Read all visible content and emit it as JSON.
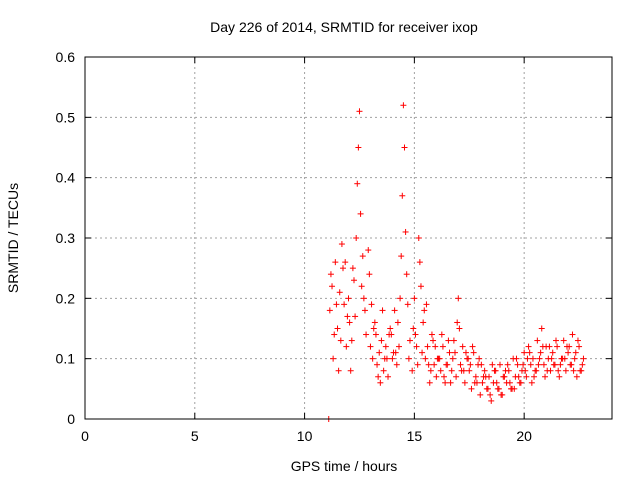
{
  "chart_data": {
    "type": "scatter",
    "title": "Day 226 of 2014, SRMTID for receiver ixop",
    "xlabel": "GPS time / hours",
    "ylabel": "SRMTID / TECUs",
    "xlim": [
      0,
      24
    ],
    "ylim": [
      0,
      0.6
    ],
    "xticks": [
      0,
      5,
      10,
      15,
      20
    ],
    "xtick_labels": [
      "0",
      "5",
      "10",
      "15",
      "20"
    ],
    "yticks": [
      0,
      0.1,
      0.2,
      0.3,
      0.4,
      0.5,
      0.6
    ],
    "ytick_labels": [
      "0",
      "0.1",
      "0.2",
      "0.3",
      "0.4",
      "0.5",
      "0.6"
    ],
    "grid": true,
    "marker": "+",
    "color": "#ff0000",
    "series": [
      {
        "name": "SRMTID",
        "x": [
          11.1,
          11.15,
          11.2,
          11.3,
          11.4,
          11.5,
          11.6,
          11.7,
          11.8,
          11.9,
          12.0,
          12.1,
          12.2,
          12.3,
          12.35,
          12.4,
          12.45,
          12.5,
          12.55,
          12.6,
          12.65,
          12.7,
          12.8,
          12.9,
          13.0,
          13.1,
          13.2,
          13.3,
          13.4,
          13.5,
          13.6,
          13.7,
          13.8,
          13.9,
          14.0,
          14.1,
          14.2,
          14.3,
          14.4,
          14.45,
          14.5,
          14.55,
          14.6,
          14.65,
          14.7,
          14.8,
          14.9,
          15.0,
          15.1,
          15.2,
          15.3,
          15.4,
          15.5,
          15.6,
          15.7,
          15.8,
          15.9,
          16.0,
          16.1,
          16.2,
          16.3,
          16.4,
          16.5,
          16.6,
          16.7,
          16.8,
          16.9,
          17.0,
          17.1,
          17.2,
          17.3,
          17.4,
          17.5,
          17.6,
          17.7,
          17.8,
          17.9,
          18.0,
          18.1,
          18.2,
          18.3,
          18.4,
          18.5,
          18.6,
          18.7,
          18.8,
          18.9,
          19.0,
          19.1,
          19.2,
          19.3,
          19.4,
          19.5,
          19.6,
          19.7,
          19.8,
          19.9,
          20.0,
          20.1,
          20.2,
          20.3,
          20.4,
          20.5,
          20.6,
          20.7,
          20.8,
          20.9,
          21.0,
          21.1,
          21.2,
          21.3,
          21.4,
          21.5,
          21.6,
          21.7,
          21.8,
          21.9,
          22.0,
          22.1,
          22.2,
          22.3,
          22.4,
          22.5,
          22.6,
          22.7,
          11.25,
          11.45,
          11.65,
          11.85,
          12.05,
          12.25,
          12.75,
          12.95,
          13.15,
          13.35,
          13.55,
          13.75,
          13.95,
          14.15,
          14.35,
          14.75,
          14.95,
          15.15,
          15.35,
          15.55,
          15.75,
          15.95,
          16.15,
          16.35,
          16.55,
          16.75,
          16.95,
          17.15,
          17.35,
          17.55,
          17.75,
          17.95,
          18.15,
          18.35,
          18.55,
          18.75,
          18.95,
          19.15,
          19.35,
          19.55,
          19.75,
          19.95,
          20.15,
          20.35,
          20.55,
          20.75,
          20.95,
          21.15,
          21.35,
          21.55,
          21.75,
          21.95,
          22.15,
          22.35,
          22.55,
          11.35,
          11.55,
          11.75,
          11.95,
          12.15,
          13.05,
          13.25,
          13.45,
          13.65,
          13.85,
          14.05,
          14.25,
          15.05,
          15.25,
          15.45,
          15.65,
          15.85,
          16.05,
          16.25,
          16.45,
          16.65,
          16.85,
          17.05,
          17.25,
          17.45,
          17.65,
          17.85,
          18.05,
          18.25,
          18.45,
          18.65,
          18.85,
          19.05,
          19.25,
          19.45,
          19.65,
          19.85,
          20.05,
          20.25,
          20.45,
          20.65,
          20.85,
          21.05,
          21.25,
          21.45,
          21.65,
          21.85,
          22.05,
          22.25,
          22.45,
          22.65
        ],
        "y": [
          0.0,
          0.18,
          0.24,
          0.1,
          0.26,
          0.15,
          0.21,
          0.29,
          0.19,
          0.12,
          0.2,
          0.08,
          0.25,
          0.17,
          0.3,
          0.39,
          0.45,
          0.51,
          0.34,
          0.22,
          0.27,
          0.2,
          0.14,
          0.28,
          0.12,
          0.1,
          0.16,
          0.09,
          0.11,
          0.13,
          0.08,
          0.12,
          0.07,
          0.15,
          0.1,
          0.18,
          0.09,
          0.12,
          0.27,
          0.37,
          0.52,
          0.45,
          0.31,
          0.24,
          0.19,
          0.13,
          0.08,
          0.2,
          0.12,
          0.3,
          0.22,
          0.16,
          0.1,
          0.12,
          0.06,
          0.14,
          0.09,
          0.07,
          0.1,
          0.08,
          0.12,
          0.06,
          0.09,
          0.11,
          0.08,
          0.13,
          0.07,
          0.2,
          0.09,
          0.12,
          0.06,
          0.1,
          0.08,
          0.05,
          0.11,
          0.07,
          0.09,
          0.04,
          0.06,
          0.08,
          0.05,
          0.07,
          0.03,
          0.06,
          0.08,
          0.05,
          0.09,
          0.04,
          0.07,
          0.06,
          0.08,
          0.05,
          0.1,
          0.07,
          0.09,
          0.06,
          0.08,
          0.11,
          0.07,
          0.12,
          0.09,
          0.1,
          0.08,
          0.13,
          0.1,
          0.15,
          0.09,
          0.12,
          0.1,
          0.08,
          0.11,
          0.09,
          0.12,
          0.07,
          0.1,
          0.13,
          0.08,
          0.11,
          0.09,
          0.14,
          0.1,
          0.07,
          0.12,
          0.08,
          0.1,
          0.22,
          0.19,
          0.13,
          0.26,
          0.16,
          0.23,
          0.18,
          0.24,
          0.15,
          0.07,
          0.18,
          0.1,
          0.14,
          0.11,
          0.2,
          0.1,
          0.15,
          0.09,
          0.11,
          0.19,
          0.08,
          0.12,
          0.1,
          0.07,
          0.13,
          0.1,
          0.16,
          0.08,
          0.11,
          0.09,
          0.06,
          0.1,
          0.07,
          0.05,
          0.09,
          0.06,
          0.04,
          0.08,
          0.06,
          0.05,
          0.07,
          0.09,
          0.1,
          0.06,
          0.08,
          0.11,
          0.07,
          0.12,
          0.09,
          0.08,
          0.1,
          0.12,
          0.09,
          0.11,
          0.08,
          0.14,
          0.08,
          0.25,
          0.17,
          0.13,
          0.19,
          0.14,
          0.06,
          0.1,
          0.14,
          0.11,
          0.16,
          0.14,
          0.26,
          0.18,
          0.09,
          0.13,
          0.1,
          0.14,
          0.09,
          0.06,
          0.11,
          0.15,
          0.08,
          0.1,
          0.12,
          0.06,
          0.09,
          0.07,
          0.04,
          0.08,
          0.05,
          0.07,
          0.09,
          0.05,
          0.1,
          0.06,
          0.08,
          0.11,
          0.07,
          0.09,
          0.12,
          0.08,
          0.1,
          0.13,
          0.09,
          0.1,
          0.12,
          0.08,
          0.13,
          0.09
        ]
      }
    ]
  }
}
